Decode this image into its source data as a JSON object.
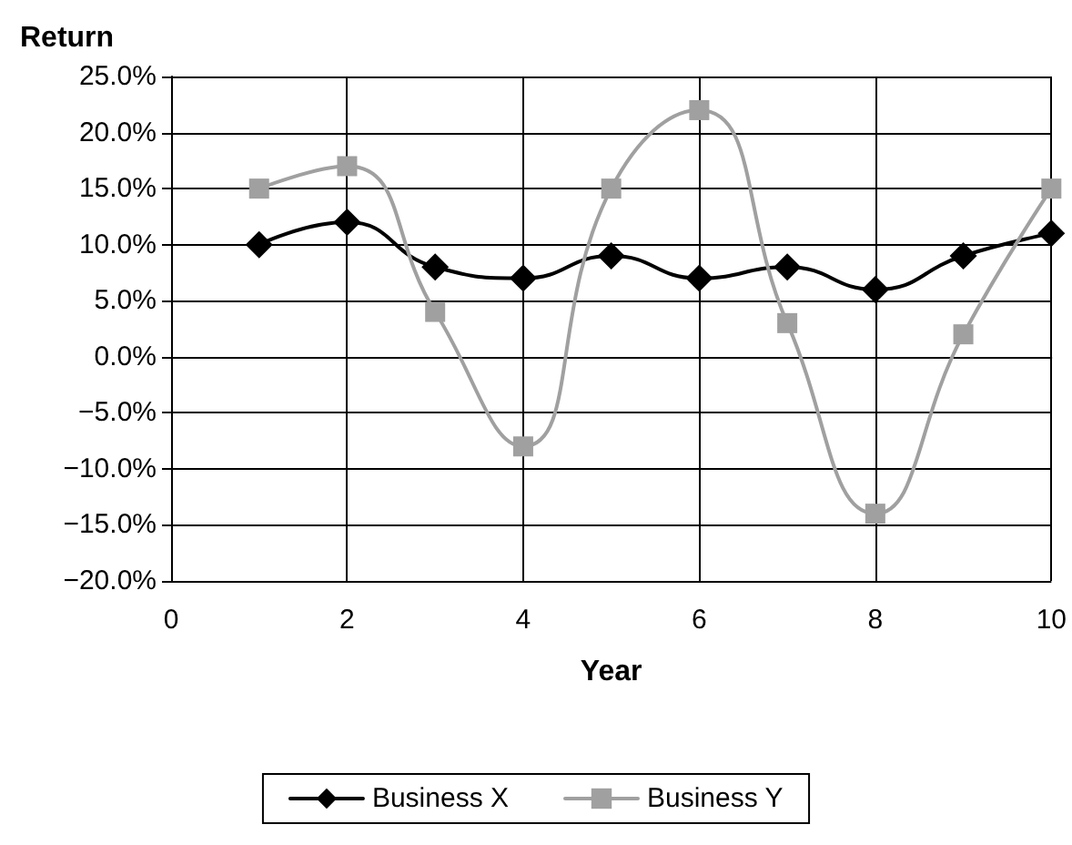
{
  "chart_data": {
    "type": "line",
    "ylabel": "Return",
    "xlabel": "Year",
    "x": [
      1,
      2,
      3,
      4,
      5,
      6,
      7,
      8,
      9,
      10
    ],
    "series": [
      {
        "name": "Business X",
        "color": "#000000",
        "marker": "diamond",
        "values": [
          10,
          12,
          8,
          7,
          9,
          7,
          8,
          6,
          9,
          11
        ]
      },
      {
        "name": "Business Y",
        "color": "#a0a0a0",
        "marker": "square",
        "values": [
          15,
          17,
          4,
          -8,
          15,
          22,
          3,
          -14,
          2,
          15
        ]
      }
    ],
    "xlim": [
      0,
      10
    ],
    "xticks": [
      0,
      2,
      4,
      6,
      8,
      10
    ],
    "ylim": [
      -20,
      25
    ],
    "yticks": [
      {
        "value": -20,
        "label": "−20.0%"
      },
      {
        "value": -15,
        "label": "−15.0%"
      },
      {
        "value": -10,
        "label": "−10.0%"
      },
      {
        "value": -5,
        "label": "−5.0%"
      },
      {
        "value": 0,
        "label": "0.0%"
      },
      {
        "value": 5,
        "label": "5.0%"
      },
      {
        "value": 10,
        "label": "10.0%"
      },
      {
        "value": 15,
        "label": "15.0%"
      },
      {
        "value": 20,
        "label": "20.0%"
      },
      {
        "value": 25,
        "label": "25.0%"
      }
    ],
    "grid": true,
    "legend": "bottom"
  }
}
